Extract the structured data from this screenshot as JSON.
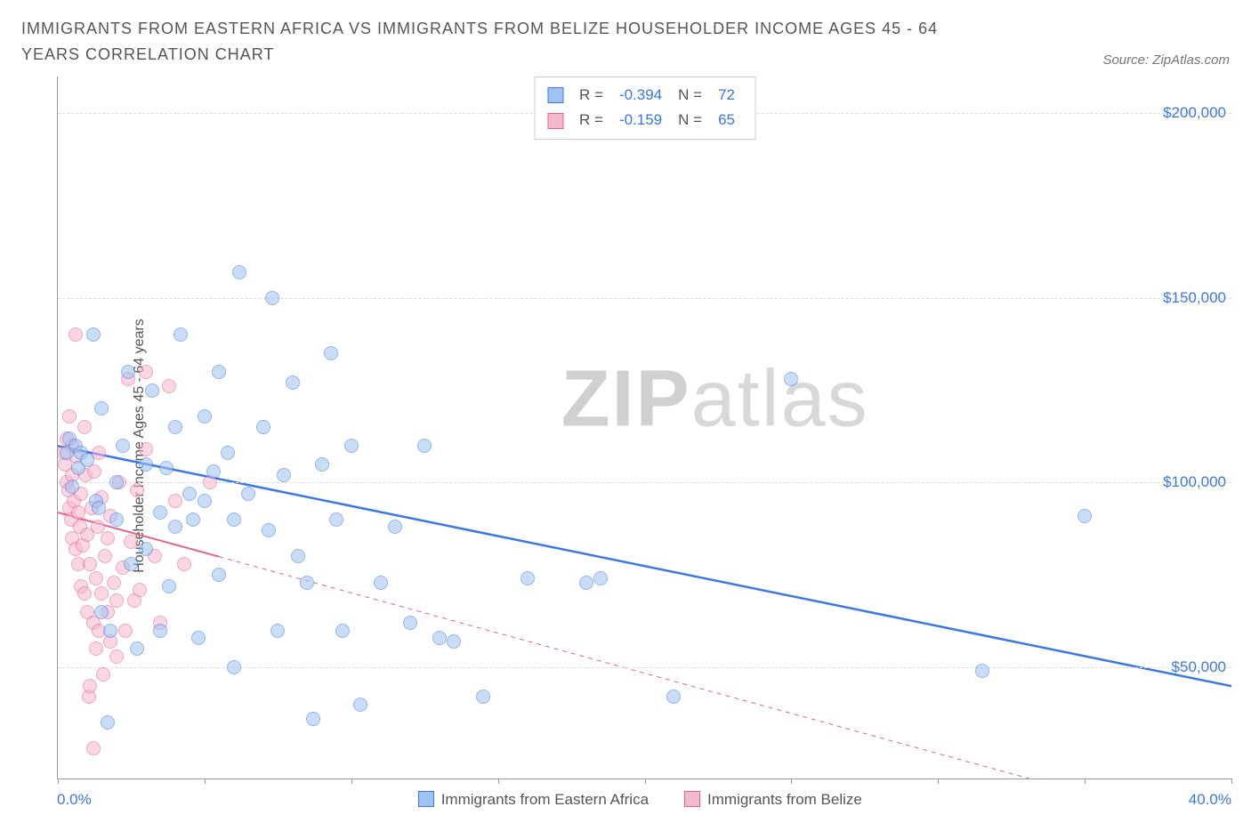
{
  "title": "IMMIGRANTS FROM EASTERN AFRICA VS IMMIGRANTS FROM BELIZE HOUSEHOLDER INCOME AGES 45 - 64 YEARS CORRELATION CHART",
  "source": "Source: ZipAtlas.com",
  "watermark_bold": "ZIP",
  "watermark_light": "atlas",
  "y_axis_label": "Householder Income Ages 45 - 64 years",
  "chart": {
    "type": "scatter",
    "xlim": [
      0,
      40
    ],
    "ylim": [
      20000,
      210000
    ],
    "x_ticks": [
      0,
      5,
      10,
      15,
      20,
      25,
      30,
      35,
      40
    ],
    "x_tick_labels": {
      "start": "0.0%",
      "end": "40.0%"
    },
    "y_ticks": [
      50000,
      100000,
      150000,
      200000
    ],
    "y_tick_labels": [
      "$50,000",
      "$100,000",
      "$150,000",
      "$200,000"
    ],
    "grid_color": "#dddddd",
    "background_color": "#ffffff",
    "axis_color": "#999999",
    "tick_label_color": "#3b78e7",
    "point_radius": 8,
    "point_opacity": 0.55
  },
  "series": [
    {
      "name": "Immigrants from Eastern Africa",
      "color_fill": "#9fc3f2",
      "color_stroke": "#3b78e7",
      "r_value": "-0.394",
      "n_value": "72",
      "trend": {
        "x1": 0,
        "y1": 110000,
        "x2": 40,
        "y2": 45000,
        "solid_until_x": 40,
        "width": 2.5
      },
      "points": [
        [
          0.3,
          108000
        ],
        [
          0.4,
          112000
        ],
        [
          0.5,
          99000
        ],
        [
          0.6,
          110000
        ],
        [
          0.7,
          104000
        ],
        [
          0.8,
          108000
        ],
        [
          1.0,
          106000
        ],
        [
          1.2,
          140000
        ],
        [
          1.3,
          95000
        ],
        [
          1.4,
          93000
        ],
        [
          1.5,
          120000
        ],
        [
          1.5,
          65000
        ],
        [
          1.7,
          35000
        ],
        [
          1.8,
          60000
        ],
        [
          2.0,
          100000
        ],
        [
          2.0,
          90000
        ],
        [
          2.2,
          110000
        ],
        [
          2.4,
          130000
        ],
        [
          2.5,
          78000
        ],
        [
          2.7,
          55000
        ],
        [
          3.0,
          105000
        ],
        [
          3.0,
          82000
        ],
        [
          3.2,
          125000
        ],
        [
          3.5,
          92000
        ],
        [
          3.5,
          60000
        ],
        [
          3.7,
          104000
        ],
        [
          3.8,
          72000
        ],
        [
          4.0,
          115000
        ],
        [
          4.0,
          88000
        ],
        [
          4.2,
          140000
        ],
        [
          4.5,
          97000
        ],
        [
          4.6,
          90000
        ],
        [
          4.8,
          58000
        ],
        [
          5.0,
          118000
        ],
        [
          5.0,
          95000
        ],
        [
          5.3,
          103000
        ],
        [
          5.5,
          75000
        ],
        [
          5.5,
          130000
        ],
        [
          5.8,
          108000
        ],
        [
          6.0,
          90000
        ],
        [
          6.0,
          50000
        ],
        [
          6.2,
          157000
        ],
        [
          6.5,
          97000
        ],
        [
          7.0,
          115000
        ],
        [
          7.2,
          87000
        ],
        [
          7.3,
          150000
        ],
        [
          7.5,
          60000
        ],
        [
          7.7,
          102000
        ],
        [
          8.0,
          127000
        ],
        [
          8.2,
          80000
        ],
        [
          8.5,
          73000
        ],
        [
          8.7,
          36000
        ],
        [
          9.0,
          105000
        ],
        [
          9.3,
          135000
        ],
        [
          9.5,
          90000
        ],
        [
          9.7,
          60000
        ],
        [
          10.0,
          110000
        ],
        [
          10.3,
          40000
        ],
        [
          11.0,
          73000
        ],
        [
          11.5,
          88000
        ],
        [
          12.0,
          62000
        ],
        [
          12.5,
          110000
        ],
        [
          13.0,
          58000
        ],
        [
          13.5,
          57000
        ],
        [
          14.5,
          42000
        ],
        [
          16.0,
          74000
        ],
        [
          18.0,
          73000
        ],
        [
          18.5,
          74000
        ],
        [
          21.0,
          42000
        ],
        [
          25.0,
          128000
        ],
        [
          31.5,
          49000
        ],
        [
          35.0,
          91000
        ]
      ]
    },
    {
      "name": "Immigrants from Belize",
      "color_fill": "#f6b8cb",
      "color_stroke": "#e85f8f",
      "r_value": "-0.159",
      "n_value": "65",
      "trend": {
        "x1": 0,
        "y1": 92000,
        "x2": 40,
        "y2": 5000,
        "solid_until_x": 5.5,
        "width": 2
      },
      "points": [
        [
          0.2,
          108000
        ],
        [
          0.25,
          105000
        ],
        [
          0.3,
          112000
        ],
        [
          0.3,
          100000
        ],
        [
          0.35,
          98000
        ],
        [
          0.4,
          118000
        ],
        [
          0.4,
          93000
        ],
        [
          0.45,
          90000
        ],
        [
          0.5,
          110000
        ],
        [
          0.5,
          85000
        ],
        [
          0.5,
          102000
        ],
        [
          0.55,
          95000
        ],
        [
          0.6,
          82000
        ],
        [
          0.6,
          140000
        ],
        [
          0.65,
          107000
        ],
        [
          0.7,
          78000
        ],
        [
          0.7,
          92000
        ],
        [
          0.75,
          88000
        ],
        [
          0.8,
          72000
        ],
        [
          0.8,
          97000
        ],
        [
          0.85,
          83000
        ],
        [
          0.9,
          70000
        ],
        [
          0.9,
          115000
        ],
        [
          0.95,
          102000
        ],
        [
          1.0,
          86000
        ],
        [
          1.0,
          65000
        ],
        [
          1.05,
          42000
        ],
        [
          1.1,
          45000
        ],
        [
          1.1,
          78000
        ],
        [
          1.15,
          93000
        ],
        [
          1.2,
          62000
        ],
        [
          1.2,
          28000
        ],
        [
          1.25,
          103000
        ],
        [
          1.3,
          74000
        ],
        [
          1.3,
          55000
        ],
        [
          1.35,
          88000
        ],
        [
          1.4,
          60000
        ],
        [
          1.4,
          108000
        ],
        [
          1.5,
          70000
        ],
        [
          1.5,
          96000
        ],
        [
          1.55,
          48000
        ],
        [
          1.6,
          80000
        ],
        [
          1.7,
          65000
        ],
        [
          1.7,
          85000
        ],
        [
          1.8,
          57000
        ],
        [
          1.8,
          91000
        ],
        [
          1.9,
          73000
        ],
        [
          2.0,
          68000
        ],
        [
          2.0,
          53000
        ],
        [
          2.1,
          100000
        ],
        [
          2.2,
          77000
        ],
        [
          2.3,
          60000
        ],
        [
          2.4,
          128000
        ],
        [
          2.5,
          84000
        ],
        [
          2.6,
          68000
        ],
        [
          2.7,
          98000
        ],
        [
          2.8,
          71000
        ],
        [
          3.0,
          109000
        ],
        [
          3.0,
          130000
        ],
        [
          3.3,
          80000
        ],
        [
          3.5,
          62000
        ],
        [
          3.8,
          126000
        ],
        [
          4.0,
          95000
        ],
        [
          4.3,
          78000
        ],
        [
          5.2,
          100000
        ]
      ]
    }
  ],
  "legend_top": {
    "r_label": "R =",
    "n_label": "N ="
  },
  "legend_bottom": [
    {
      "label": "Immigrants from Eastern Africa",
      "fill": "#9fc3f2",
      "stroke": "#3b78e7"
    },
    {
      "label": "Immigrants from Belize",
      "fill": "#f6b8cb",
      "stroke": "#e85f8f"
    }
  ]
}
